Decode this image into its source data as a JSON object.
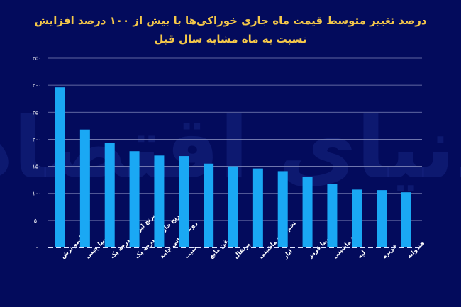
{
  "chart_data": {
    "type": "bar",
    "title": "درصد تغییر متوسط قیمت ماه جاری خوراکی‌ها با بیش از ۱۰۰ درصد افزایش",
    "subtitle": "نسبت به ماه مشابه سال قبل",
    "categories": [
      "لیمو ترش",
      "لوبیا چیتی",
      "برنج ایرانی درجه یک",
      "برنج خارجی درجه یک",
      "روغن نباتی جامد",
      "سیب",
      "روغن مایع",
      "پرتقال",
      "تخم مرغ ماشینی",
      "انار",
      "لوبیا قرمز",
      "مرغ ماشینی",
      "لپه",
      "خربزه",
      "هندوانه"
    ],
    "values": [
      296,
      218,
      193,
      178,
      170,
      169,
      155,
      150,
      146,
      141,
      130,
      117,
      107,
      106,
      102
    ],
    "ylim": [
      0,
      350
    ],
    "yticks": [
      0,
      50,
      100,
      150,
      200,
      250,
      300,
      350
    ],
    "ytick_labels": [
      "۰",
      "۵۰",
      "۱۰۰",
      "۱۵۰",
      "۲۰۰",
      "۲۵۰",
      "۳۰۰",
      "۳۵۰"
    ],
    "grid": true,
    "colors": {
      "bar": "#1aa8f4",
      "background": "#030b5c",
      "title": "#f5c84a",
      "grid": "#7f86b8"
    },
    "watermark": "دنیای اقتصاد"
  }
}
